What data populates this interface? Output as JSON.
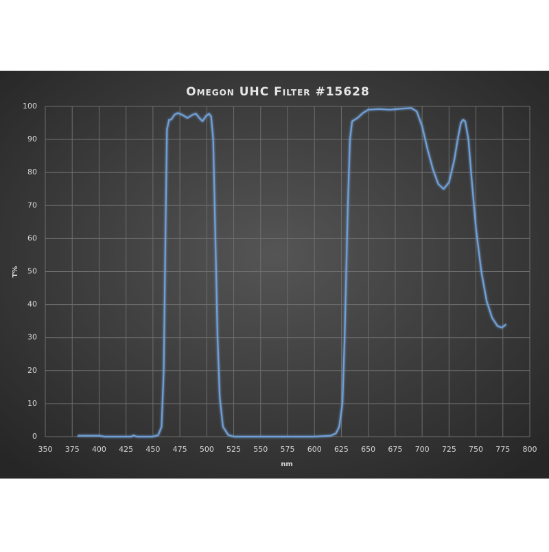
{
  "chart_data": {
    "type": "line",
    "title": "Omegon UHC Filter #15628",
    "x_label": "nm",
    "y_label": "T%",
    "x": [
      380,
      400,
      405,
      430,
      432,
      435,
      450,
      455,
      458,
      460,
      462,
      463,
      465,
      467,
      470,
      473,
      477,
      482,
      487,
      490,
      493,
      496,
      499,
      502,
      504,
      506,
      508,
      510,
      512,
      515,
      520,
      525,
      550,
      575,
      600,
      615,
      620,
      623,
      626,
      628,
      631,
      633,
      635,
      640,
      645,
      650,
      660,
      670,
      680,
      690,
      695,
      700,
      705,
      710,
      715,
      720,
      725,
      730,
      733,
      736,
      738,
      740,
      743,
      746,
      750,
      755,
      760,
      765,
      770,
      774,
      778
    ],
    "series": [
      {
        "name": "T%",
        "color": "#6f9fd6",
        "values": [
          0.3,
          0.3,
          0,
          0,
          0.4,
          0,
          0,
          0.5,
          3,
          20,
          70,
          93,
          96,
          96,
          97.5,
          98,
          97.5,
          96.5,
          97.5,
          97.8,
          96.5,
          95.5,
          97,
          97.8,
          97,
          90,
          60,
          30,
          12,
          3,
          0.5,
          0,
          0,
          0,
          0,
          0.3,
          1,
          3,
          10,
          30,
          70,
          90,
          95.5,
          96.5,
          98,
          99,
          99.2,
          99,
          99.3,
          99.5,
          98.5,
          94,
          87,
          81,
          76.5,
          75,
          77,
          84,
          90,
          95,
          96,
          95.5,
          90,
          78,
          63,
          50,
          41,
          36,
          33.5,
          33,
          34
        ]
      }
    ],
    "xlim": [
      350,
      800
    ],
    "xticks": [
      350,
      375,
      400,
      425,
      450,
      475,
      500,
      525,
      550,
      575,
      600,
      625,
      650,
      675,
      700,
      725,
      750,
      775,
      800
    ],
    "ylim": [
      0,
      100
    ],
    "yticks": [
      0,
      10,
      20,
      30,
      40,
      50,
      60,
      70,
      80,
      90,
      100
    ],
    "grid": true
  }
}
